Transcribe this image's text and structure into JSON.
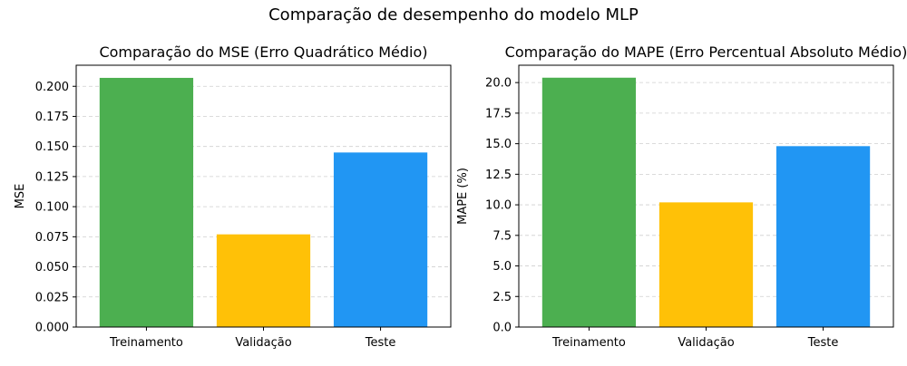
{
  "figure": {
    "suptitle": "Comparação de desempenho do modelo MLP"
  },
  "chart_data": [
    {
      "type": "bar",
      "title": "Comparação do MSE (Erro Quadrático Médio)",
      "xlabel": "",
      "ylabel": "MSE",
      "categories": [
        "Treinamento",
        "Validação",
        "Teste"
      ],
      "values": [
        0.207,
        0.077,
        0.145
      ],
      "colors": [
        "#4caf50",
        "#ffc107",
        "#2196f3"
      ],
      "ylim": [
        0,
        0.2175
      ],
      "yticks": [
        0.0,
        0.025,
        0.05,
        0.075,
        0.1,
        0.125,
        0.15,
        0.175,
        0.2
      ],
      "ytick_labels": [
        "0.000",
        "0.025",
        "0.050",
        "0.075",
        "0.100",
        "0.125",
        "0.150",
        "0.175",
        "0.200"
      ],
      "grid": "y-dashed"
    },
    {
      "type": "bar",
      "title": "Comparação do MAPE (Erro Percentual Absoluto Médio)",
      "xlabel": "",
      "ylabel": "MAPE (%)",
      "categories": [
        "Treinamento",
        "Validação",
        "Teste"
      ],
      "values": [
        20.4,
        10.2,
        14.8
      ],
      "colors": [
        "#4caf50",
        "#ffc107",
        "#2196f3"
      ],
      "ylim": [
        0,
        21.42
      ],
      "yticks": [
        0.0,
        2.5,
        5.0,
        7.5,
        10.0,
        12.5,
        15.0,
        17.5,
        20.0
      ],
      "ytick_labels": [
        "0.0",
        "2.5",
        "5.0",
        "7.5",
        "10.0",
        "12.5",
        "15.0",
        "17.5",
        "20.0"
      ],
      "grid": "y-dashed"
    }
  ]
}
